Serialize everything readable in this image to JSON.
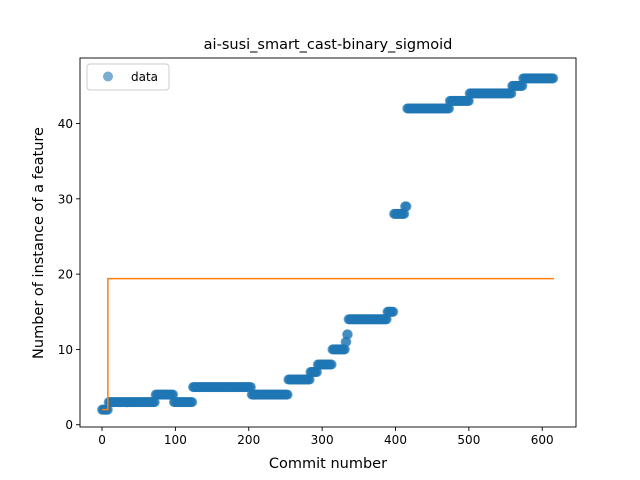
{
  "chart_data": {
    "type": "scatter",
    "title": "ai-susi_smart_cast-binary_sigmoid",
    "xlabel": "Commit number",
    "ylabel": "Number of instance of a feature",
    "xlim": [
      -30,
      646
    ],
    "ylim": [
      -0.3,
      48.7
    ],
    "xticks": [
      0,
      100,
      200,
      300,
      400,
      500,
      600
    ],
    "yticks": [
      0,
      10,
      20,
      30,
      40
    ],
    "legend": {
      "placement": "top-left",
      "entries": [
        "data"
      ]
    },
    "grid": false,
    "colors": {
      "data": "#1f77b4",
      "fit": "#ff7f0e"
    },
    "series": [
      {
        "name": "data",
        "kind": "scatter",
        "segments": [
          [
            0,
            8,
            2
          ],
          [
            9,
            72,
            3
          ],
          [
            73,
            97,
            4
          ],
          [
            98,
            123,
            3
          ],
          [
            124,
            203,
            5
          ],
          [
            204,
            253,
            4
          ],
          [
            254,
            283,
            6
          ],
          [
            284,
            293,
            7
          ],
          [
            294,
            313,
            8
          ],
          [
            314,
            331,
            10
          ],
          [
            332,
            333,
            11
          ],
          [
            334,
            335,
            12
          ],
          [
            336,
            388,
            14
          ],
          [
            389,
            397,
            15
          ],
          [
            398,
            412,
            28
          ],
          [
            413,
            415,
            29
          ],
          [
            416,
            473,
            42
          ],
          [
            474,
            500,
            43
          ],
          [
            501,
            558,
            44
          ],
          [
            559,
            573,
            45
          ],
          [
            574,
            615,
            46
          ]
        ]
      },
      {
        "kind": "line",
        "points": [
          [
            0,
            2
          ],
          [
            8,
            2
          ],
          [
            8,
            19.4
          ],
          [
            616,
            19.4
          ]
        ]
      }
    ]
  }
}
